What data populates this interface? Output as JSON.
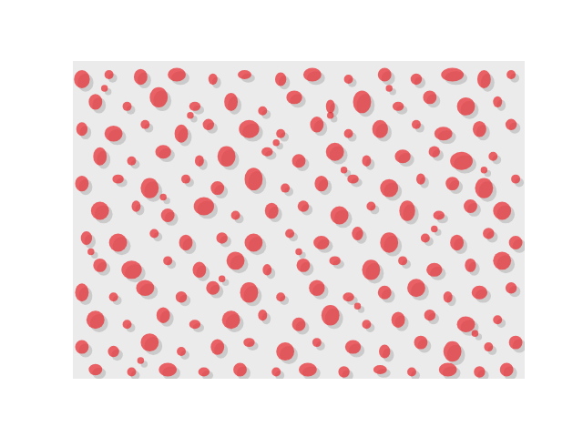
{
  "chart_data": {
    "type": "ellipses",
    "color": "#e8262b",
    "xlim": [
      0,
      100
    ],
    "ylim": [
      0,
      70
    ],
    "grid": false,
    "tick_labels": false,
    "ellipses": [
      {
        "x": 2,
        "y": 66,
        "width": 3.5,
        "height": 4
      },
      {
        "x": 8,
        "y": 67,
        "width": 2,
        "height": 2
      },
      {
        "x": 15,
        "y": 66.5,
        "width": 3,
        "height": 3.5
      },
      {
        "x": 23,
        "y": 67,
        "width": 4,
        "height": 3
      },
      {
        "x": 31,
        "y": 66,
        "width": 2,
        "height": 2.5
      },
      {
        "x": 38,
        "y": 67,
        "width": 3,
        "height": 2
      },
      {
        "x": 46,
        "y": 66,
        "width": 2.5,
        "height": 3
      },
      {
        "x": 53,
        "y": 67,
        "width": 4,
        "height": 3
      },
      {
        "x": 61,
        "y": 66,
        "width": 2,
        "height": 2
      },
      {
        "x": 69,
        "y": 67,
        "width": 3,
        "height": 3
      },
      {
        "x": 76,
        "y": 66,
        "width": 2.5,
        "height": 2.5
      },
      {
        "x": 84,
        "y": 67,
        "width": 5,
        "height": 3
      },
      {
        "x": 91,
        "y": 66,
        "width": 3,
        "height": 4
      },
      {
        "x": 97,
        "y": 67,
        "width": 2,
        "height": 2
      },
      {
        "x": 5,
        "y": 61,
        "width": 3,
        "height": 3.5
      },
      {
        "x": 12,
        "y": 60,
        "width": 2,
        "height": 2
      },
      {
        "x": 19,
        "y": 62,
        "width": 4,
        "height": 4.5
      },
      {
        "x": 27,
        "y": 60,
        "width": 2.5,
        "height": 2
      },
      {
        "x": 35,
        "y": 61,
        "width": 3,
        "height": 4
      },
      {
        "x": 42,
        "y": 59,
        "width": 2,
        "height": 2
      },
      {
        "x": 49,
        "y": 62,
        "width": 3.5,
        "height": 3
      },
      {
        "x": 57,
        "y": 60,
        "width": 2,
        "height": 3
      },
      {
        "x": 64,
        "y": 61,
        "width": 4,
        "height": 5
      },
      {
        "x": 72,
        "y": 60,
        "width": 2.5,
        "height": 2
      },
      {
        "x": 79,
        "y": 62,
        "width": 3,
        "height": 3
      },
      {
        "x": 87,
        "y": 60,
        "width": 4,
        "height": 4
      },
      {
        "x": 94,
        "y": 61,
        "width": 2,
        "height": 2.5
      },
      {
        "x": 2,
        "y": 55,
        "width": 2.5,
        "height": 3
      },
      {
        "x": 9,
        "y": 54,
        "width": 4,
        "height": 3.5
      },
      {
        "x": 16,
        "y": 56,
        "width": 2,
        "height": 2
      },
      {
        "x": 24,
        "y": 54,
        "width": 3,
        "height": 4
      },
      {
        "x": 30,
        "y": 56,
        "width": 2.5,
        "height": 2.5
      },
      {
        "x": 39,
        "y": 55,
        "width": 4.5,
        "height": 4
      },
      {
        "x": 46,
        "y": 54,
        "width": 2,
        "height": 2
      },
      {
        "x": 54,
        "y": 56,
        "width": 3,
        "height": 3.5
      },
      {
        "x": 61,
        "y": 54,
        "width": 2,
        "height": 2
      },
      {
        "x": 68,
        "y": 55,
        "width": 3.5,
        "height": 4
      },
      {
        "x": 76,
        "y": 56,
        "width": 2,
        "height": 2
      },
      {
        "x": 82,
        "y": 54,
        "width": 4,
        "height": 3
      },
      {
        "x": 90,
        "y": 55,
        "width": 3,
        "height": 3.5
      },
      {
        "x": 97,
        "y": 56,
        "width": 2.5,
        "height": 2.5
      },
      {
        "x": 6,
        "y": 49,
        "width": 3,
        "height": 4
      },
      {
        "x": 13,
        "y": 48,
        "width": 2,
        "height": 2
      },
      {
        "x": 20,
        "y": 50,
        "width": 3.5,
        "height": 3
      },
      {
        "x": 28,
        "y": 48,
        "width": 2,
        "height": 2.5
      },
      {
        "x": 34,
        "y": 49,
        "width": 4,
        "height": 4.5
      },
      {
        "x": 43,
        "y": 50,
        "width": 2.5,
        "height": 2
      },
      {
        "x": 50,
        "y": 48,
        "width": 3,
        "height": 3
      },
      {
        "x": 58,
        "y": 50,
        "width": 4,
        "height": 4
      },
      {
        "x": 65,
        "y": 48,
        "width": 2,
        "height": 2.5
      },
      {
        "x": 73,
        "y": 49,
        "width": 3.5,
        "height": 3
      },
      {
        "x": 80,
        "y": 50,
        "width": 2.5,
        "height": 2.5
      },
      {
        "x": 86,
        "y": 48,
        "width": 5,
        "height": 4
      },
      {
        "x": 93,
        "y": 49,
        "width": 2,
        "height": 2
      },
      {
        "x": 2,
        "y": 43,
        "width": 3,
        "height": 3.5
      },
      {
        "x": 10,
        "y": 44,
        "width": 2.5,
        "height": 2
      },
      {
        "x": 17,
        "y": 42,
        "width": 4,
        "height": 4.5
      },
      {
        "x": 25,
        "y": 44,
        "width": 2,
        "height": 2
      },
      {
        "x": 32,
        "y": 42,
        "width": 3,
        "height": 3
      },
      {
        "x": 40,
        "y": 44,
        "width": 4,
        "height": 5
      },
      {
        "x": 47,
        "y": 42,
        "width": 2,
        "height": 2
      },
      {
        "x": 55,
        "y": 43,
        "width": 3,
        "height": 3.5
      },
      {
        "x": 62,
        "y": 44,
        "width": 2.5,
        "height": 2
      },
      {
        "x": 70,
        "y": 42,
        "width": 4,
        "height": 4
      },
      {
        "x": 77,
        "y": 44,
        "width": 2,
        "height": 2.5
      },
      {
        "x": 84,
        "y": 43,
        "width": 3,
        "height": 3
      },
      {
        "x": 91,
        "y": 42,
        "width": 4,
        "height": 4.5
      },
      {
        "x": 98,
        "y": 44,
        "width": 2,
        "height": 2
      },
      {
        "x": 6,
        "y": 37,
        "width": 4,
        "height": 4
      },
      {
        "x": 14,
        "y": 38,
        "width": 2,
        "height": 2.5
      },
      {
        "x": 21,
        "y": 36,
        "width": 3,
        "height": 3
      },
      {
        "x": 29,
        "y": 38,
        "width": 4.5,
        "height": 4
      },
      {
        "x": 36,
        "y": 36,
        "width": 2,
        "height": 2
      },
      {
        "x": 44,
        "y": 37,
        "width": 3,
        "height": 3.5
      },
      {
        "x": 51,
        "y": 38,
        "width": 2.5,
        "height": 2.5
      },
      {
        "x": 59,
        "y": 36,
        "width": 4,
        "height": 4
      },
      {
        "x": 66,
        "y": 38,
        "width": 2,
        "height": 2
      },
      {
        "x": 74,
        "y": 37,
        "width": 3.5,
        "height": 4.5
      },
      {
        "x": 81,
        "y": 36,
        "width": 2.5,
        "height": 2
      },
      {
        "x": 88,
        "y": 38,
        "width": 3,
        "height": 3
      },
      {
        "x": 95,
        "y": 37,
        "width": 4,
        "height": 4
      },
      {
        "x": 3,
        "y": 31,
        "width": 2.5,
        "height": 3
      },
      {
        "x": 10,
        "y": 30,
        "width": 4,
        "height": 4
      },
      {
        "x": 18,
        "y": 32,
        "width": 2,
        "height": 2
      },
      {
        "x": 25,
        "y": 30,
        "width": 3,
        "height": 3.5
      },
      {
        "x": 33,
        "y": 31,
        "width": 2.5,
        "height": 2.5
      },
      {
        "x": 40,
        "y": 30,
        "width": 4,
        "height": 4
      },
      {
        "x": 48,
        "y": 32,
        "width": 2,
        "height": 2
      },
      {
        "x": 55,
        "y": 30,
        "width": 3.5,
        "height": 3
      },
      {
        "x": 63,
        "y": 32,
        "width": 2.5,
        "height": 3
      },
      {
        "x": 70,
        "y": 30,
        "width": 4,
        "height": 4.5
      },
      {
        "x": 78,
        "y": 31,
        "width": 2,
        "height": 2
      },
      {
        "x": 85,
        "y": 30,
        "width": 3,
        "height": 3.5
      },
      {
        "x": 92,
        "y": 32,
        "width": 2.5,
        "height": 2.5
      },
      {
        "x": 98,
        "y": 30,
        "width": 3,
        "height": 3
      },
      {
        "x": 6,
        "y": 25,
        "width": 3,
        "height": 3
      },
      {
        "x": 13,
        "y": 24,
        "width": 4.5,
        "height": 4
      },
      {
        "x": 21,
        "y": 26,
        "width": 2,
        "height": 2
      },
      {
        "x": 28,
        "y": 24,
        "width": 3,
        "height": 3.5
      },
      {
        "x": 36,
        "y": 26,
        "width": 4,
        "height": 4
      },
      {
        "x": 43,
        "y": 24,
        "width": 2,
        "height": 2.5
      },
      {
        "x": 51,
        "y": 25,
        "width": 3,
        "height": 3
      },
      {
        "x": 58,
        "y": 26,
        "width": 2.5,
        "height": 2
      },
      {
        "x": 66,
        "y": 24,
        "width": 4,
        "height": 4.5
      },
      {
        "x": 73,
        "y": 26,
        "width": 2,
        "height": 2
      },
      {
        "x": 80,
        "y": 24,
        "width": 3.5,
        "height": 3
      },
      {
        "x": 88,
        "y": 25,
        "width": 2.5,
        "height": 3
      },
      {
        "x": 95,
        "y": 26,
        "width": 4,
        "height": 4
      },
      {
        "x": 2,
        "y": 19,
        "width": 3,
        "height": 4
      },
      {
        "x": 9,
        "y": 18,
        "width": 2,
        "height": 2
      },
      {
        "x": 16,
        "y": 20,
        "width": 4,
        "height": 3.5
      },
      {
        "x": 24,
        "y": 18,
        "width": 2.5,
        "height": 2.5
      },
      {
        "x": 31,
        "y": 20,
        "width": 3,
        "height": 3
      },
      {
        "x": 39,
        "y": 19,
        "width": 4,
        "height": 4.5
      },
      {
        "x": 46,
        "y": 18,
        "width": 2,
        "height": 2
      },
      {
        "x": 54,
        "y": 20,
        "width": 3.5,
        "height": 3.5
      },
      {
        "x": 61,
        "y": 18,
        "width": 2.5,
        "height": 2
      },
      {
        "x": 69,
        "y": 19,
        "width": 3,
        "height": 3
      },
      {
        "x": 76,
        "y": 20,
        "width": 4,
        "height": 4
      },
      {
        "x": 83,
        "y": 18,
        "width": 2,
        "height": 2.5
      },
      {
        "x": 90,
        "y": 19,
        "width": 3.5,
        "height": 3
      },
      {
        "x": 97,
        "y": 20,
        "width": 2.5,
        "height": 2.5
      },
      {
        "x": 5,
        "y": 13,
        "width": 4,
        "height": 4
      },
      {
        "x": 12,
        "y": 12,
        "width": 2,
        "height": 2
      },
      {
        "x": 20,
        "y": 14,
        "width": 3,
        "height": 3.5
      },
      {
        "x": 27,
        "y": 12,
        "width": 2.5,
        "height": 2
      },
      {
        "x": 35,
        "y": 13,
        "width": 4,
        "height": 4
      },
      {
        "x": 42,
        "y": 14,
        "width": 2,
        "height": 2.5
      },
      {
        "x": 50,
        "y": 12,
        "width": 3,
        "height": 3
      },
      {
        "x": 57,
        "y": 14,
        "width": 4,
        "height": 4.5
      },
      {
        "x": 65,
        "y": 12,
        "width": 2,
        "height": 2
      },
      {
        "x": 72,
        "y": 13,
        "width": 3,
        "height": 3.5
      },
      {
        "x": 79,
        "y": 14,
        "width": 2.5,
        "height": 2.5
      },
      {
        "x": 87,
        "y": 12,
        "width": 4,
        "height": 3.5
      },
      {
        "x": 94,
        "y": 13,
        "width": 2,
        "height": 2
      },
      {
        "x": 2,
        "y": 7,
        "width": 3,
        "height": 3
      },
      {
        "x": 9,
        "y": 6,
        "width": 2.5,
        "height": 2.5
      },
      {
        "x": 17,
        "y": 8,
        "width": 4,
        "height": 4
      },
      {
        "x": 24,
        "y": 6,
        "width": 2,
        "height": 2
      },
      {
        "x": 32,
        "y": 7,
        "width": 3,
        "height": 3.5
      },
      {
        "x": 39,
        "y": 8,
        "width": 2.5,
        "height": 2
      },
      {
        "x": 47,
        "y": 6,
        "width": 4,
        "height": 4
      },
      {
        "x": 54,
        "y": 8,
        "width": 2,
        "height": 2
      },
      {
        "x": 62,
        "y": 7,
        "width": 3.5,
        "height": 3
      },
      {
        "x": 69,
        "y": 6,
        "width": 2.5,
        "height": 3
      },
      {
        "x": 77,
        "y": 8,
        "width": 3,
        "height": 3
      },
      {
        "x": 84,
        "y": 6,
        "width": 4,
        "height": 4.5
      },
      {
        "x": 92,
        "y": 7,
        "width": 2,
        "height": 2
      },
      {
        "x": 98,
        "y": 8,
        "width": 3,
        "height": 3
      },
      {
        "x": 5,
        "y": 2,
        "width": 3,
        "height": 2.5
      },
      {
        "x": 13,
        "y": 1.5,
        "width": 2,
        "height": 2
      },
      {
        "x": 21,
        "y": 2,
        "width": 4,
        "height": 3
      },
      {
        "x": 29,
        "y": 1.5,
        "width": 2.5,
        "height": 2
      },
      {
        "x": 37,
        "y": 2,
        "width": 3,
        "height": 3
      },
      {
        "x": 45,
        "y": 1.5,
        "width": 2,
        "height": 2
      },
      {
        "x": 52,
        "y": 2,
        "width": 4,
        "height": 3
      },
      {
        "x": 60,
        "y": 1.5,
        "width": 2.5,
        "height": 2.5
      },
      {
        "x": 68,
        "y": 2,
        "width": 3,
        "height": 2
      },
      {
        "x": 75,
        "y": 1.5,
        "width": 2,
        "height": 2
      },
      {
        "x": 83,
        "y": 2,
        "width": 4,
        "height": 3
      },
      {
        "x": 90,
        "y": 1.5,
        "width": 2.5,
        "height": 2.5
      },
      {
        "x": 96,
        "y": 2,
        "width": 3,
        "height": 3
      },
      {
        "x": 7,
        "y": 64,
        "width": 1.5,
        "height": 1.5
      },
      {
        "x": 26,
        "y": 58,
        "width": 1.5,
        "height": 1.5
      },
      {
        "x": 45,
        "y": 52,
        "width": 1.5,
        "height": 1.5
      },
      {
        "x": 60,
        "y": 46,
        "width": 1.5,
        "height": 1.5
      },
      {
        "x": 20,
        "y": 40,
        "width": 1.5,
        "height": 1.5
      },
      {
        "x": 80,
        "y": 33,
        "width": 1.5,
        "height": 1.5
      },
      {
        "x": 50,
        "y": 28,
        "width": 1.5,
        "height": 1.5
      },
      {
        "x": 33,
        "y": 22,
        "width": 1.5,
        "height": 1.5
      },
      {
        "x": 63,
        "y": 16,
        "width": 1.5,
        "height": 1.5
      },
      {
        "x": 89,
        "y": 10,
        "width": 1.5,
        "height": 1.5
      },
      {
        "x": 15,
        "y": 4,
        "width": 1.5,
        "height": 1.5
      },
      {
        "x": 70,
        "y": 64,
        "width": 1.5,
        "height": 1.5
      },
      {
        "x": 91,
        "y": 46,
        "width": 1.5,
        "height": 1.5
      },
      {
        "x": 4,
        "y": 28,
        "width": 1.5,
        "height": 1.5
      },
      {
        "x": 57,
        "y": 58,
        "width": 1.5,
        "height": 1.5
      }
    ]
  }
}
